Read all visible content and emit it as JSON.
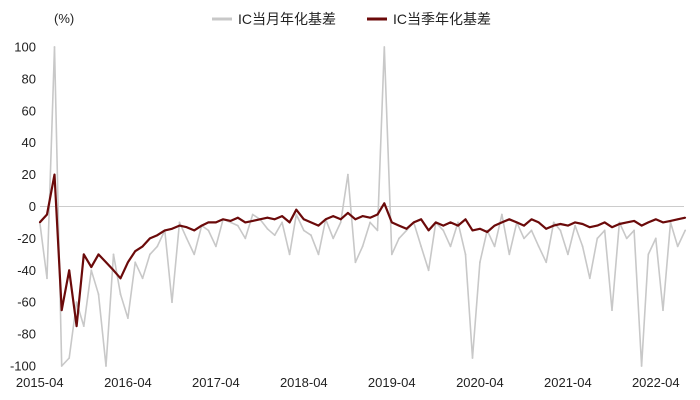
{
  "chart_data": {
    "type": "line",
    "unit_label": "(%)",
    "ylim": [
      -100,
      100
    ],
    "y_ticks": [
      "100",
      "80",
      "60",
      "40",
      "20",
      "0",
      "-20",
      "-40",
      "-60",
      "-80",
      "-100"
    ],
    "x_ticks": [
      "2015-04",
      "2016-04",
      "2017-04",
      "2018-04",
      "2019-04",
      "2020-04",
      "2021-04",
      "2022-04"
    ],
    "x_range": [
      "2015-04-16",
      "2022-08-10"
    ],
    "grid": false,
    "zero_line": true,
    "legend": {
      "placement": "top",
      "entries": [
        "IC当月年化基差",
        "IC当季年化基差"
      ]
    },
    "colors": {
      "monthly": "#c8c8c8",
      "quarterly": "#6b0a0a",
      "zero_line": "#cccccc"
    },
    "series": [
      {
        "name": "IC当月年化基差",
        "x": [
          "2015-04",
          "2015-05",
          "2015-06",
          "2015-07",
          "2015-08",
          "2015-09",
          "2015-10",
          "2015-11",
          "2015-12",
          "2016-01",
          "2016-02",
          "2016-03",
          "2016-04",
          "2016-05",
          "2016-06",
          "2016-07",
          "2016-08",
          "2016-09",
          "2016-10",
          "2016-11",
          "2016-12",
          "2017-01",
          "2017-02",
          "2017-03",
          "2017-04",
          "2017-05",
          "2017-06",
          "2017-07",
          "2017-08",
          "2017-09",
          "2017-10",
          "2017-11",
          "2017-12",
          "2018-01",
          "2018-02",
          "2018-03",
          "2018-04",
          "2018-05",
          "2018-06",
          "2018-07",
          "2018-08",
          "2018-09",
          "2018-10",
          "2018-11",
          "2018-12",
          "2019-01",
          "2019-02",
          "2019-03",
          "2019-04",
          "2019-05",
          "2019-06",
          "2019-07",
          "2019-08",
          "2019-09",
          "2019-10",
          "2019-11",
          "2019-12",
          "2020-01",
          "2020-02",
          "2020-03",
          "2020-04",
          "2020-05",
          "2020-06",
          "2020-07",
          "2020-08",
          "2020-09",
          "2020-10",
          "2020-11",
          "2020-12",
          "2021-01",
          "2021-02",
          "2021-03",
          "2021-04",
          "2021-05",
          "2021-06",
          "2021-07",
          "2021-08",
          "2021-09",
          "2021-10",
          "2021-11",
          "2021-12",
          "2022-01",
          "2022-02",
          "2022-03",
          "2022-04",
          "2022-05",
          "2022-06",
          "2022-07",
          "2022-08"
        ],
        "values": [
          -10,
          -45,
          100,
          -100,
          -95,
          -60,
          -75,
          -40,
          -55,
          -100,
          -30,
          -55,
          -70,
          -35,
          -45,
          -30,
          -25,
          -15,
          -60,
          -10,
          -20,
          -30,
          -12,
          -15,
          -25,
          -8,
          -10,
          -12,
          -20,
          -5,
          -8,
          -14,
          -18,
          -10,
          -30,
          -5,
          -15,
          -18,
          -30,
          -8,
          -20,
          -10,
          20,
          -35,
          -25,
          -10,
          -15,
          100,
          -30,
          -20,
          -15,
          -10,
          -25,
          -40,
          -10,
          -15,
          -25,
          -10,
          -30,
          -95,
          -35,
          -15,
          -25,
          -5,
          -30,
          -10,
          -20,
          -15,
          -25,
          -35,
          -10,
          -15,
          -30,
          -12,
          -25,
          -45,
          -20,
          -15,
          -65,
          -10,
          -20,
          -15,
          -100,
          -30,
          -20,
          -65,
          -10,
          -25,
          -15
        ]
      },
      {
        "name": "IC当季年化基差",
        "x": [
          "2015-04",
          "2015-05",
          "2015-06",
          "2015-07",
          "2015-08",
          "2015-09",
          "2015-10",
          "2015-11",
          "2015-12",
          "2016-01",
          "2016-02",
          "2016-03",
          "2016-04",
          "2016-05",
          "2016-06",
          "2016-07",
          "2016-08",
          "2016-09",
          "2016-10",
          "2016-11",
          "2016-12",
          "2017-01",
          "2017-02",
          "2017-03",
          "2017-04",
          "2017-05",
          "2017-06",
          "2017-07",
          "2017-08",
          "2017-09",
          "2017-10",
          "2017-11",
          "2017-12",
          "2018-01",
          "2018-02",
          "2018-03",
          "2018-04",
          "2018-05",
          "2018-06",
          "2018-07",
          "2018-08",
          "2018-09",
          "2018-10",
          "2018-11",
          "2018-12",
          "2019-01",
          "2019-02",
          "2019-03",
          "2019-04",
          "2019-05",
          "2019-06",
          "2019-07",
          "2019-08",
          "2019-09",
          "2019-10",
          "2019-11",
          "2019-12",
          "2020-01",
          "2020-02",
          "2020-03",
          "2020-04",
          "2020-05",
          "2020-06",
          "2020-07",
          "2020-08",
          "2020-09",
          "2020-10",
          "2020-11",
          "2020-12",
          "2021-01",
          "2021-02",
          "2021-03",
          "2021-04",
          "2021-05",
          "2021-06",
          "2021-07",
          "2021-08",
          "2021-09",
          "2021-10",
          "2021-11",
          "2021-12",
          "2022-01",
          "2022-02",
          "2022-03",
          "2022-04",
          "2022-05",
          "2022-06",
          "2022-07",
          "2022-08"
        ],
        "values": [
          -10,
          -5,
          20,
          -65,
          -40,
          -75,
          -30,
          -38,
          -30,
          -35,
          -40,
          -45,
          -35,
          -28,
          -25,
          -20,
          -18,
          -15,
          -14,
          -12,
          -13,
          -15,
          -12,
          -10,
          -10,
          -8,
          -9,
          -7,
          -10,
          -9,
          -8,
          -7,
          -8,
          -6,
          -10,
          -2,
          -8,
          -10,
          -12,
          -8,
          -6,
          -8,
          -4,
          -8,
          -6,
          -7,
          -5,
          2,
          -10,
          -12,
          -14,
          -10,
          -8,
          -15,
          -10,
          -12,
          -10,
          -12,
          -8,
          -15,
          -14,
          -16,
          -12,
          -10,
          -8,
          -10,
          -12,
          -8,
          -10,
          -14,
          -12,
          -11,
          -12,
          -10,
          -11,
          -13,
          -12,
          -10,
          -13,
          -11,
          -10,
          -9,
          -12,
          -10,
          -8,
          -10,
          -9,
          -8,
          -7
        ]
      }
    ]
  }
}
